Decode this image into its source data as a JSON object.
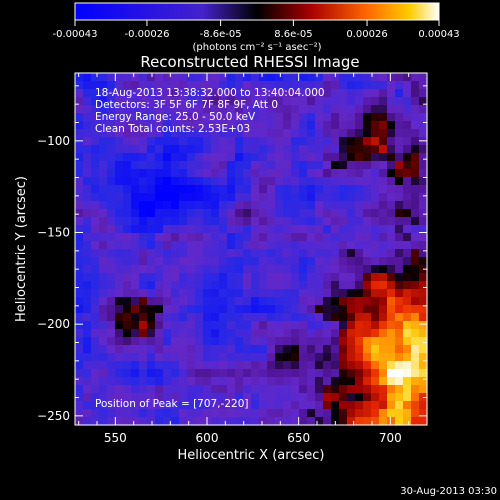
{
  "chart_data": {
    "type": "heatmap",
    "title": "Reconstructed RHESSI Image",
    "xlabel": "Heliocentric X (arcsec)",
    "ylabel": "Heliocentric Y (arcsec)",
    "xlim": [
      528,
      720
    ],
    "ylim": [
      -255,
      -63
    ],
    "x_ticks": [
      550,
      600,
      650,
      700
    ],
    "y_ticks": [
      -100,
      -150,
      -200,
      -250
    ],
    "colorbar": {
      "range": [
        -0.00043,
        0.00043
      ],
      "ticks": [
        -0.00043,
        -0.00026,
        -8.6e-05,
        8.6e-05,
        0.00026,
        0.00043
      ],
      "tick_labels": [
        "-0.00043",
        "-0.00026",
        "-8.6e-05",
        "8.6e-05",
        "0.00026",
        "0.00043"
      ],
      "unit_label": "(photons cm⁻² s⁻¹ asec⁻²)"
    },
    "info_lines": [
      "18-Aug-2013 13:38:32.000 to 13:40:04.000",
      "Detectors: 3F 5F 6F 7F 8F 9F, Att 0",
      "Energy Range: 25.0 - 50.0 keV",
      "Clean     Total counts: 2.53E+03"
    ],
    "peak_label": "Position of Peak = [707,-220]",
    "peak": [
      707,
      -220
    ],
    "footer_timestamp": "30-Aug-2013 03:30"
  }
}
